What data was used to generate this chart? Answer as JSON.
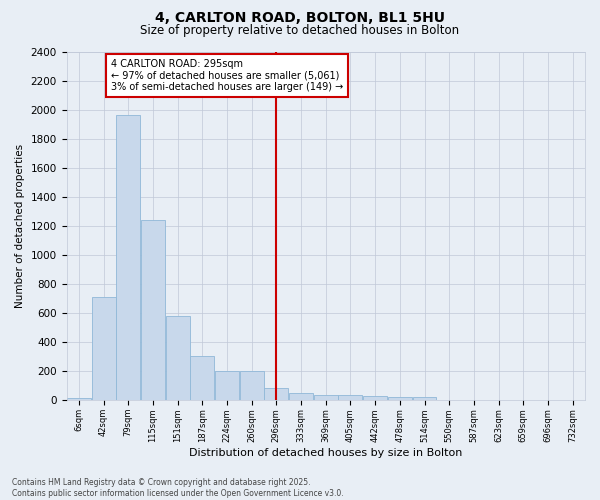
{
  "title": "4, CARLTON ROAD, BOLTON, BL1 5HU",
  "subtitle": "Size of property relative to detached houses in Bolton",
  "xlabel": "Distribution of detached houses by size in Bolton",
  "ylabel": "Number of detached properties",
  "bins": [
    "6sqm",
    "42sqm",
    "79sqm",
    "115sqm",
    "151sqm",
    "187sqm",
    "224sqm",
    "260sqm",
    "296sqm",
    "333sqm",
    "369sqm",
    "405sqm",
    "442sqm",
    "478sqm",
    "514sqm",
    "550sqm",
    "587sqm",
    "623sqm",
    "659sqm",
    "696sqm",
    "732sqm"
  ],
  "bar_heights": [
    15,
    710,
    1960,
    1240,
    580,
    305,
    200,
    200,
    85,
    50,
    38,
    35,
    32,
    20,
    20,
    5,
    0,
    0,
    0,
    0,
    0
  ],
  "bar_color": "#c8d8eb",
  "bar_edgecolor": "#90b8d8",
  "property_line_x": 8.0,
  "annotation_text": "4 CARLTON ROAD: 295sqm\n← 97% of detached houses are smaller (5,061)\n3% of semi-detached houses are larger (149) →",
  "annotation_box_color": "#ffffff",
  "annotation_box_edgecolor": "#cc0000",
  "vline_color": "#cc0000",
  "ylim": [
    0,
    2400
  ],
  "yticks": [
    0,
    200,
    400,
    600,
    800,
    1000,
    1200,
    1400,
    1600,
    1800,
    2000,
    2200,
    2400
  ],
  "grid_color": "#c0c8d8",
  "bg_color": "#e8eef5",
  "footer_text": "Contains HM Land Registry data © Crown copyright and database right 2025.\nContains public sector information licensed under the Open Government Licence v3.0."
}
